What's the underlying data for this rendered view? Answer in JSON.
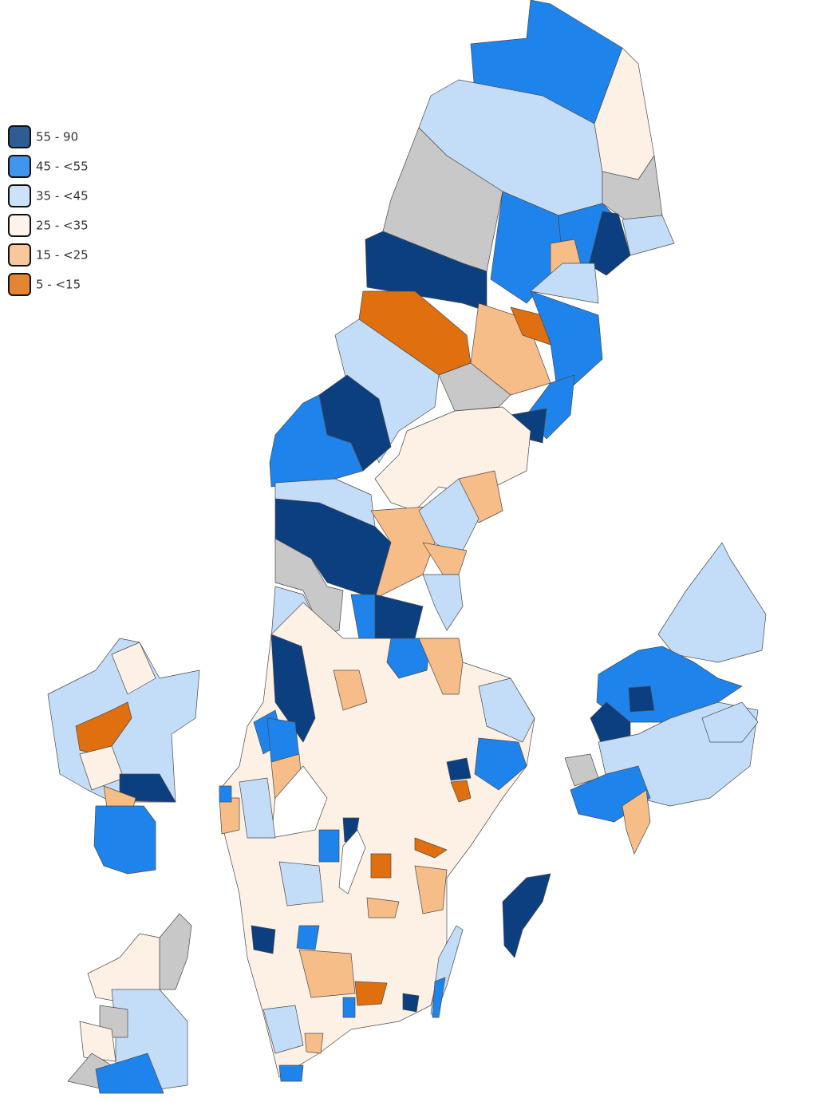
{
  "legend": {
    "items": [
      {
        "label": "55 - 90",
        "color": "#0b3f7f"
      },
      {
        "label": "45 - <55",
        "color": "#1e84ec"
      },
      {
        "label": "35 - <45",
        "color": "#c3ddf8"
      },
      {
        "label": "25 - <35",
        "color": "#fdf1e6"
      },
      {
        "label": "15 - <25",
        "color": "#f7bd88"
      },
      {
        "label": "5 - <15",
        "color": "#e0700f"
      }
    ]
  }
}
